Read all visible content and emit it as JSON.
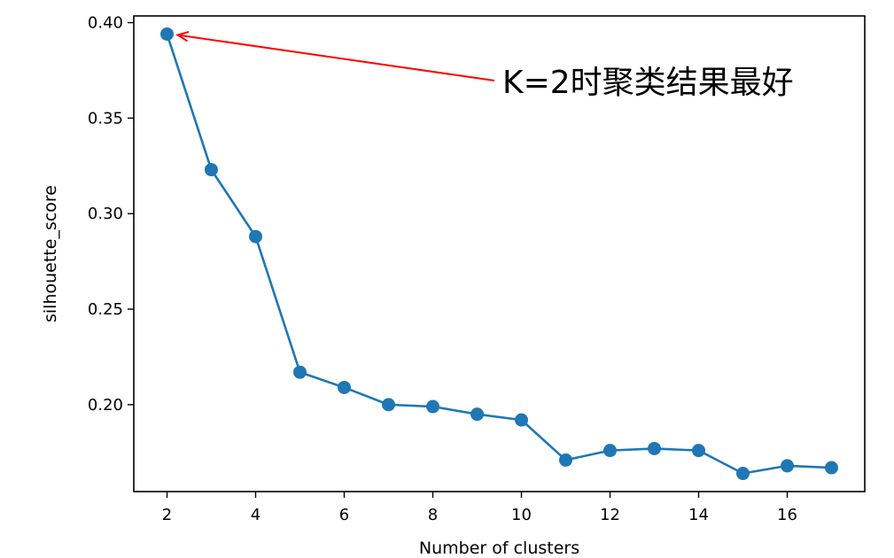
{
  "chart_data": {
    "type": "line",
    "title": "",
    "xlabel": "Number of clusters",
    "ylabel": "silhouette_score",
    "x": [
      2,
      3,
      4,
      5,
      6,
      7,
      8,
      9,
      10,
      11,
      12,
      13,
      14,
      15,
      16,
      17
    ],
    "series": [
      {
        "values": [
          0.394,
          0.323,
          0.288,
          0.217,
          0.209,
          0.2,
          0.199,
          0.195,
          0.192,
          0.171,
          0.176,
          0.177,
          0.176,
          0.164,
          0.168,
          0.167
        ],
        "color": "#1f77b4",
        "marker": "circle"
      }
    ],
    "xlim": [
      1.25,
      17.75
    ],
    "ylim": [
      0.1545,
      0.4035
    ],
    "xticks": [
      "2",
      "4",
      "6",
      "8",
      "10",
      "12",
      "14",
      "16"
    ],
    "xtick_values": [
      2,
      4,
      6,
      8,
      10,
      12,
      14,
      16
    ],
    "yticks": [
      "0.20",
      "0.25",
      "0.30",
      "0.35",
      "0.40"
    ],
    "ytick_values": [
      0.2,
      0.25,
      0.3,
      0.35,
      0.4
    ],
    "grid": false,
    "annotation": {
      "text": "K=2时聚类结果最好",
      "target_x": 2,
      "target_y": 0.394,
      "arrow_color": "#ff0000"
    }
  }
}
